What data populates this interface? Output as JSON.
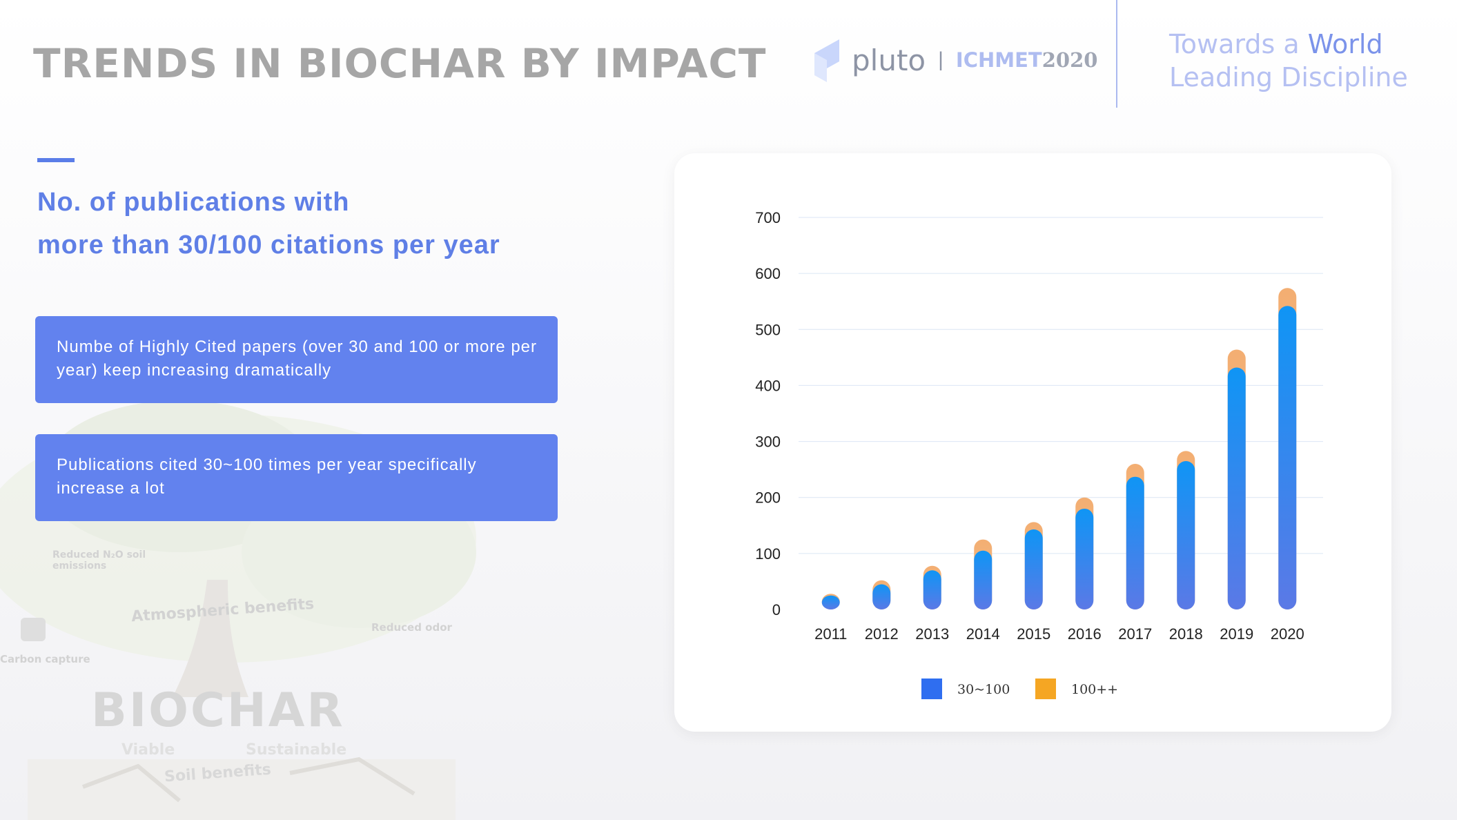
{
  "header": {
    "title": "TRENDS IN BIOCHAR BY IMPACT",
    "brand_name": "pluto",
    "brand_separator": "|",
    "event_name": "ICHMET",
    "event_year": "2020",
    "tagline_part1": "Towards a ",
    "tagline_highlight": "World",
    "tagline_line2": "Leading Discipline"
  },
  "section": {
    "heading_line1": "No. of publications with",
    "heading_line2": "more than 30/100 citations per year"
  },
  "callouts": [
    "Numbe   of Highly Cited papers (over 30 and 100 or more per year) keep increasing dramatically",
    "Publications cited 30~100 times per year specifically increase a lot"
  ],
  "background_labels": {
    "reduced_n2o": "Reduced N₂O soil emissions",
    "atmospheric": "Atmospheric benefits",
    "reduced_odor": "Reduced odor",
    "carbon_capture": "Carbon capture",
    "biochar": "BIOCHAR",
    "viable": "Viable",
    "sustainable": "Sustainable",
    "soil": "Soil benefits"
  },
  "colors": {
    "accent": "#5a7de8",
    "callout_bg": "#6282ee",
    "series_30_100": "#2f6ef0",
    "series_100_plus": "#f5a623"
  },
  "chart_data": {
    "type": "bar",
    "stacked": true,
    "categories": [
      "2011",
      "2012",
      "2013",
      "2014",
      "2015",
      "2016",
      "2017",
      "2018",
      "2019",
      "2020"
    ],
    "series": [
      {
        "name": "30~100",
        "values": [
          25,
          45,
          70,
          105,
          143,
          180,
          237,
          265,
          432,
          542
        ]
      },
      {
        "name": "100++",
        "values": [
          3,
          7,
          8,
          20,
          13,
          20,
          23,
          18,
          32,
          32
        ]
      }
    ],
    "y_ticks": [
      0,
      100,
      200,
      300,
      400,
      500,
      600,
      700
    ],
    "ylim": [
      0,
      700
    ],
    "grid": true,
    "legend_position": "bottom"
  }
}
